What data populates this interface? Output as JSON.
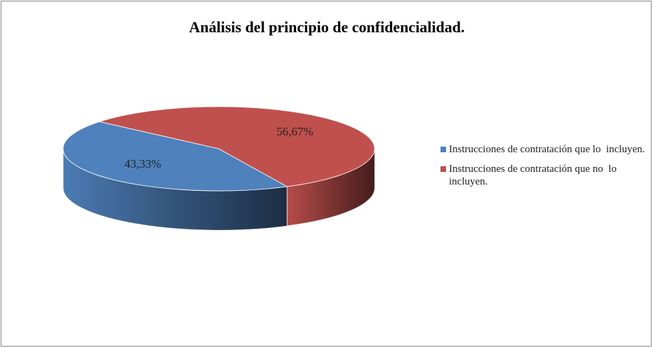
{
  "chart_data": {
    "type": "pie",
    "title": "Análisis del principio de confidencialidad.",
    "categories": [
      "Instrucciones de contratación que lo  incluyen.",
      "Instrucciones de contratación que no  lo incluyen."
    ],
    "values": [
      43.33,
      56.67
    ],
    "value_labels": [
      "43,33%",
      "56,67%"
    ],
    "colors": [
      "#4f81bd",
      "#c0504d"
    ],
    "legend": "right"
  }
}
